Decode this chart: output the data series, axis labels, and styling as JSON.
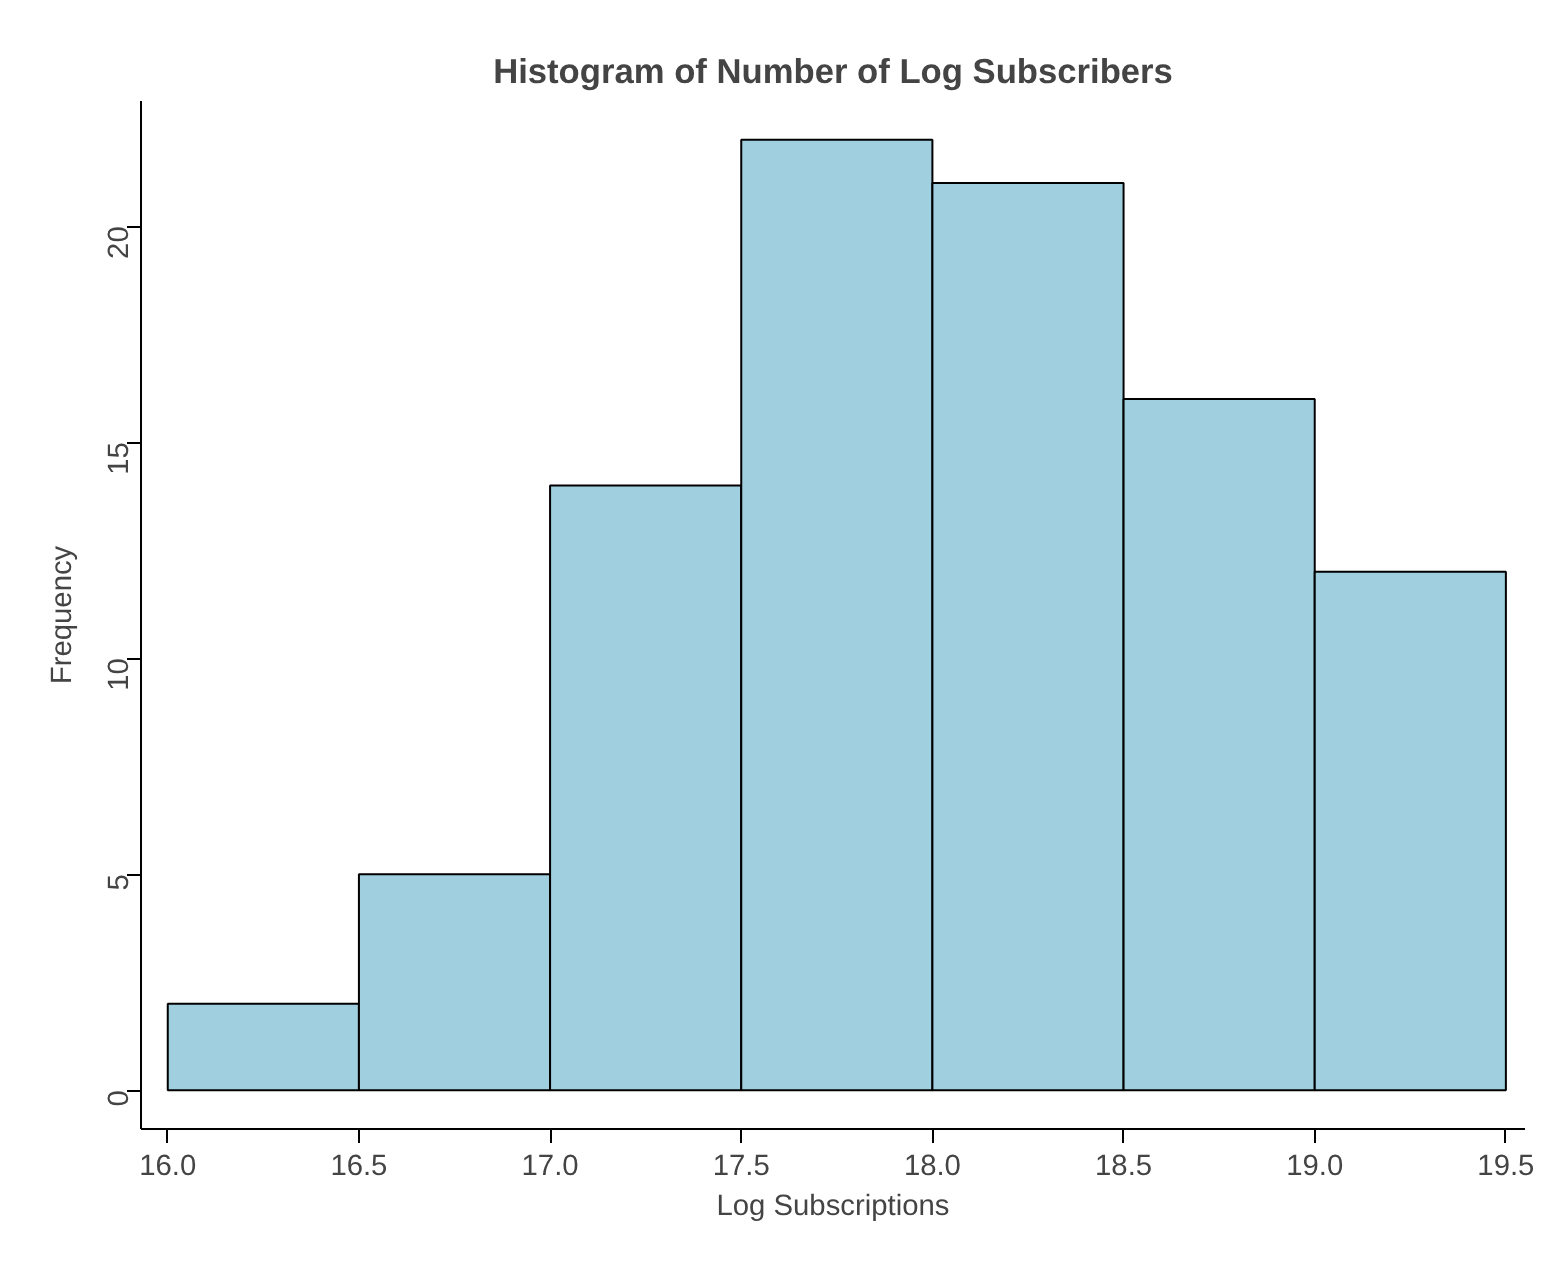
{
  "chart_data": {
    "type": "histogram",
    "title": "Histogram of Number of Log Subscribers",
    "xlabel": "Log Subscriptions",
    "ylabel": "Frequency",
    "bins": [
      16.0,
      16.5,
      17.0,
      17.5,
      18.0,
      18.5,
      19.0,
      19.5
    ],
    "values": [
      2,
      5,
      14,
      22,
      21,
      16,
      12
    ],
    "color": "#a0cfe0",
    "xlim": [
      15.93,
      19.55
    ],
    "ylim": [
      -0.9,
      22.9
    ],
    "xticks": [
      {
        "value": 16,
        "label": "16.0"
      },
      {
        "value": 16.5,
        "label": "16.5"
      },
      {
        "value": 17,
        "label": "17.0"
      },
      {
        "value": 17.5,
        "label": "17.5"
      },
      {
        "value": 18,
        "label": "18.0"
      },
      {
        "value": 18.5,
        "label": "18.5"
      },
      {
        "value": 19,
        "label": "19.0"
      },
      {
        "value": 19.5,
        "label": "19.5"
      }
    ],
    "yticks": [
      0,
      5,
      10,
      15,
      20
    ],
    "grid": false
  }
}
